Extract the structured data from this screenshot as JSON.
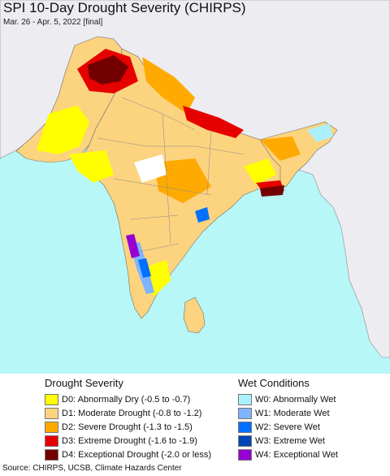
{
  "header": {
    "title": "SPI 10-Day Drought Severity (CHIRPS)",
    "subtitle": "Mar. 26 - Apr. 5, 2022 [final]"
  },
  "map": {
    "ocean_color": "#b8f7f7",
    "land_color": "#ffffff",
    "foreign_land_color": "#ececf1",
    "border_color": "#707070"
  },
  "legend": {
    "drought": {
      "heading": "Drought Severity",
      "items": [
        {
          "label": "D0: Abnormally Dry (-0.5 to -0.7)",
          "color": "#ffff00"
        },
        {
          "label": "D1: Moderate Drought (-0.8 to -1.2)",
          "color": "#fcd37f"
        },
        {
          "label": "D2: Severe Drought (-1.3 to -1.5)",
          "color": "#ffaa00"
        },
        {
          "label": "D3: Extreme Drought (-1.6 to -1.9)",
          "color": "#e60000"
        },
        {
          "label": "D4: Exceptional Drought (-2.0 or less)",
          "color": "#730000"
        }
      ]
    },
    "wet": {
      "heading": "Wet Conditions",
      "items": [
        {
          "label": "W0: Abnormally Wet",
          "color": "#aaf0ff"
        },
        {
          "label": "W1: Moderate Wet",
          "color": "#7fb4ff"
        },
        {
          "label": "W2: Severe Wet",
          "color": "#0070ff"
        },
        {
          "label": "W3: Extreme Wet",
          "color": "#0046b4"
        },
        {
          "label": "W4: Exceptional Wet",
          "color": "#9600d2"
        }
      ]
    }
  },
  "footer": {
    "source": "Source: CHIRPS, UCSB, Climate Hazards Center"
  }
}
